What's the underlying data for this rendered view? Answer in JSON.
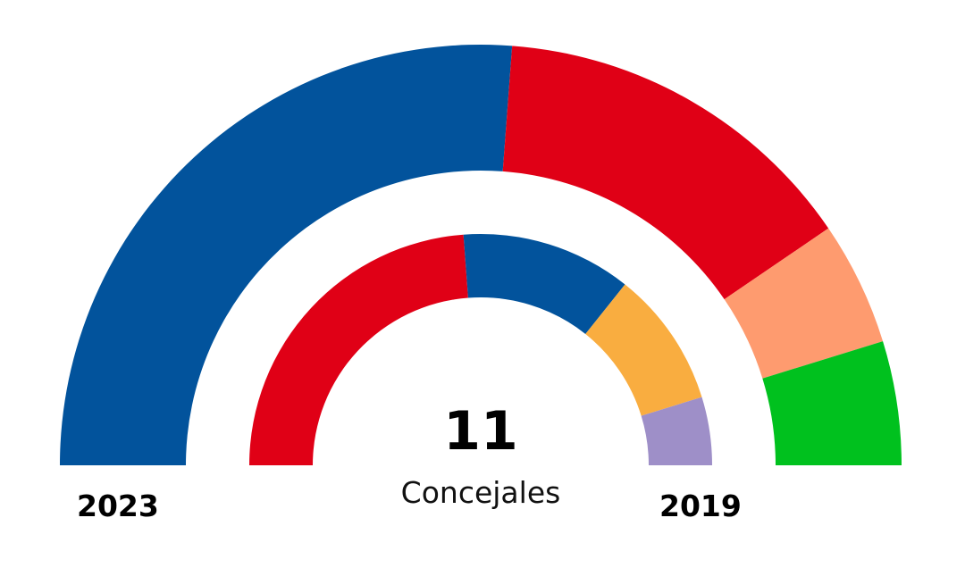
{
  "chart_data": {
    "type": "pie",
    "subtype": "parliament-semicircle",
    "center_value": "11",
    "center_label": "Concejales",
    "rings": [
      {
        "label": "2023",
        "position": "outer",
        "series": [
          {
            "name": "Blue party",
            "value": 11,
            "color": "#02539c"
          },
          {
            "name": "Red party",
            "value": 6,
            "color": "#e00016"
          },
          {
            "name": "Orange party",
            "value": 2,
            "color": "#fe9b6f"
          },
          {
            "name": "Green party",
            "value": 2,
            "color": "#00c11e"
          }
        ]
      },
      {
        "label": "2019",
        "position": "inner",
        "series": [
          {
            "name": "Red party",
            "value": 10,
            "color": "#e00016"
          },
          {
            "name": "Blue party",
            "value": 5,
            "color": "#02539c"
          },
          {
            "name": "Orange party",
            "value": 4,
            "color": "#f9ad40"
          },
          {
            "name": "Purple party",
            "value": 2,
            "color": "#9e8fc8"
          }
        ]
      }
    ]
  }
}
